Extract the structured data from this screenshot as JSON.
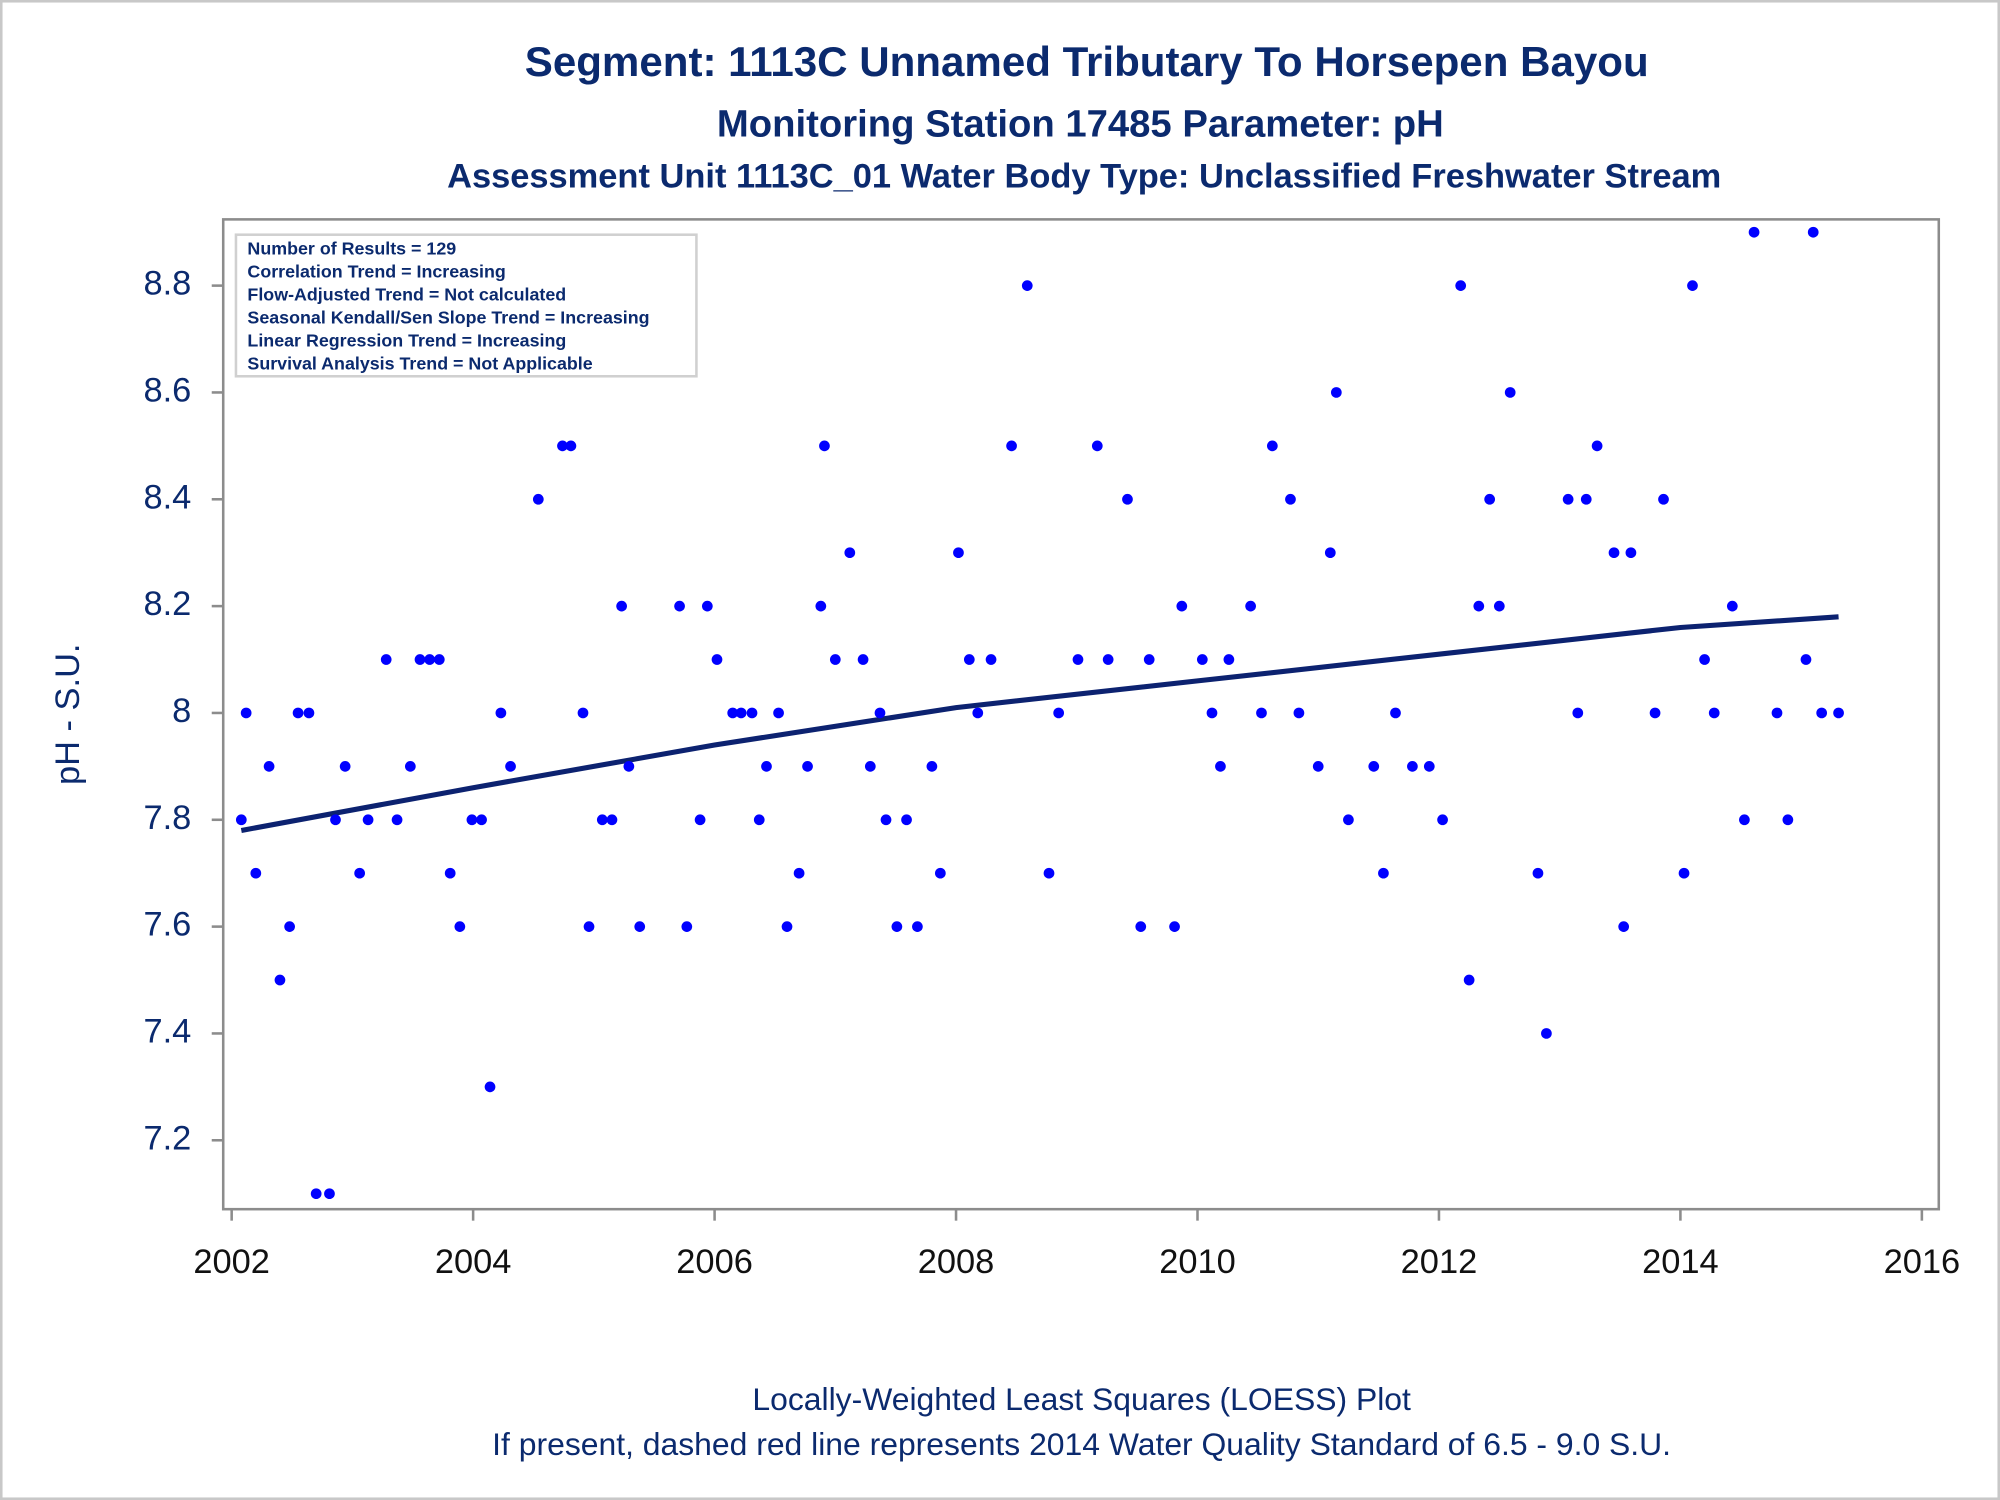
{
  "chart_data": {
    "type": "scatter",
    "title": "Segment: 1113C  Unnamed Tributary To Horsepen Bayou",
    "subtitle": "Monitoring Station 17485 Parameter: pH",
    "subtitle2": "Assessment Unit 1113C_01   Water Body Type: Unclassified Freshwater Stream",
    "ylabel": "pH - S.U.",
    "annotations": [
      "Number of Results = 129",
      "Correlation Trend = Increasing",
      "Flow-Adjusted Trend = Not calculated",
      "Seasonal Kendall/Sen Slope Trend = Increasing",
      "Linear Regression Trend = Increasing",
      "Survival Analysis Trend = Not Applicable"
    ],
    "footnotes": [
      "Locally-Weighted Least Squares (LOESS) Plot",
      "If present, dashed red line represents 2014 Water Quality Standard of 6.5 - 9.0 S.U."
    ],
    "xlim": [
      2001.93,
      2016.14
    ],
    "xticks": [
      2002,
      2004,
      2006,
      2008,
      2010,
      2012,
      2014,
      2016
    ],
    "ylim": [
      7.071,
      8.924
    ],
    "yticks": [
      7.2,
      7.4,
      7.6,
      7.8,
      8,
      8.2,
      8.4,
      8.6,
      8.8
    ],
    "color": "#0000ff",
    "x": [
      2002.08,
      2002.12,
      2002.2,
      2002.31,
      2002.4,
      2002.48,
      2002.55,
      2002.64,
      2002.7,
      2002.81,
      2002.86,
      2002.94,
      2003.06,
      2003.13,
      2003.28,
      2003.37,
      2003.48,
      2003.56,
      2003.64,
      2003.72,
      2003.81,
      2003.89,
      2003.99,
      2004.07,
      2004.14,
      2004.23,
      2004.31,
      2004.54,
      2004.74,
      2004.81,
      2004.91,
      2004.96,
      2005.07,
      2005.15,
      2005.23,
      2005.29,
      2005.38,
      2005.71,
      2005.77,
      2005.88,
      2005.94,
      2006.02,
      2006.15,
      2006.22,
      2006.31,
      2006.37,
      2006.43,
      2006.53,
      2006.6,
      2006.7,
      2006.77,
      2006.88,
      2006.91,
      2007.0,
      2007.12,
      2007.23,
      2007.29,
      2007.37,
      2007.42,
      2007.51,
      2007.59,
      2007.68,
      2007.8,
      2007.87,
      2008.02,
      2008.11,
      2008.18,
      2008.29,
      2008.46,
      2008.59,
      2008.77,
      2008.85,
      2009.01,
      2009.17,
      2009.26,
      2009.42,
      2009.53,
      2009.6,
      2009.81,
      2009.87,
      2010.04,
      2010.12,
      2010.19,
      2010.26,
      2010.44,
      2010.53,
      2010.62,
      2010.77,
      2010.84,
      2011.0,
      2011.1,
      2011.15,
      2011.25,
      2011.46,
      2011.54,
      2011.64,
      2011.78,
      2011.92,
      2012.03,
      2012.18,
      2012.25,
      2012.33,
      2012.42,
      2012.5,
      2012.59,
      2012.82,
      2012.89,
      2013.07,
      2013.15,
      2013.22,
      2013.31,
      2013.45,
      2013.53,
      2013.59,
      2013.79,
      2013.86,
      2014.03,
      2014.1,
      2014.2,
      2014.28,
      2014.43,
      2014.53,
      2014.61,
      2014.8,
      2014.89,
      2015.04,
      2015.1,
      2015.17,
      2015.31
    ],
    "values": [
      7.8,
      8.0,
      7.7,
      7.9,
      7.5,
      7.6,
      8.0,
      8.0,
      7.1,
      7.1,
      7.8,
      7.9,
      7.7,
      7.8,
      8.1,
      7.8,
      7.9,
      8.1,
      8.1,
      8.1,
      7.7,
      7.6,
      7.8,
      7.8,
      7.3,
      8.0,
      7.9,
      8.4,
      8.5,
      8.5,
      8.0,
      7.6,
      7.8,
      7.8,
      8.2,
      7.9,
      7.6,
      8.2,
      7.6,
      7.8,
      8.2,
      8.1,
      8.0,
      8.0,
      8.0,
      7.8,
      7.9,
      8.0,
      7.6,
      7.7,
      7.9,
      8.2,
      8.5,
      8.1,
      8.3,
      8.1,
      7.9,
      8.0,
      7.8,
      7.6,
      7.8,
      7.6,
      7.9,
      7.7,
      8.3,
      8.1,
      8.0,
      8.1,
      8.5,
      8.8,
      7.7,
      8.0,
      8.1,
      8.5,
      8.1,
      8.4,
      7.6,
      8.1,
      7.6,
      8.2,
      8.1,
      8.0,
      7.9,
      8.1,
      8.2,
      8.0,
      8.5,
      8.4,
      8.0,
      7.9,
      8.3,
      8.6,
      7.8,
      7.9,
      7.7,
      8.0,
      7.9,
      7.9,
      7.8,
      8.8,
      7.5,
      8.2,
      8.4,
      8.2,
      8.6,
      7.7,
      7.4,
      8.4,
      8.0,
      8.4,
      8.5,
      8.3,
      7.6,
      8.3,
      8.0,
      8.4,
      7.7,
      8.8,
      8.1,
      8.0,
      8.2,
      7.8,
      8.9,
      8.0,
      7.8,
      8.1,
      8.9,
      8.0,
      8.0
    ],
    "trend": {
      "color": "#0c2270",
      "x": [
        2002.08,
        2004,
        2006,
        2008,
        2010,
        2012,
        2014,
        2015.31
      ],
      "values": [
        7.78,
        7.86,
        7.94,
        8.01,
        8.06,
        8.11,
        8.16,
        8.18
      ]
    }
  }
}
